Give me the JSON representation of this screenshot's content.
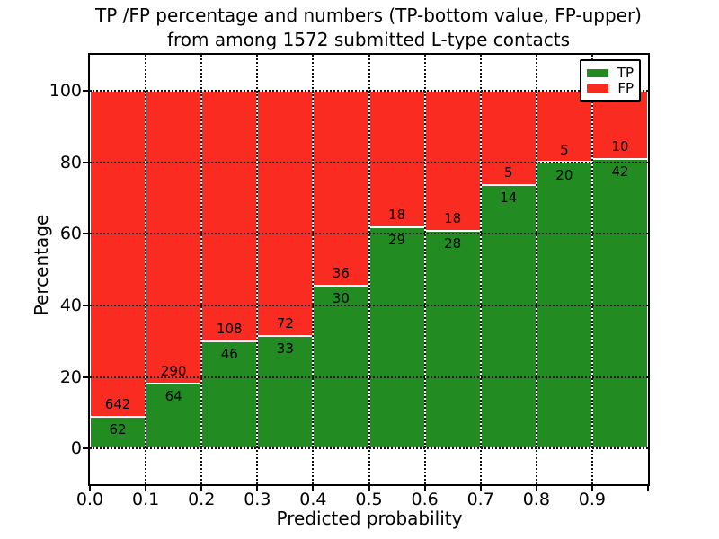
{
  "title": {
    "line1": "TP /FP percentage and numbers (TP-bottom value, FP-upper)",
    "line2": "from among 1572 submitted L-type contacts"
  },
  "chart_data": {
    "type": "bar",
    "stacked": true,
    "normalized_to_percent": true,
    "title": "TP /FP percentage and numbers (TP-bottom value, FP-upper)\nfrom among 1572 submitted L-type contacts",
    "xlabel": "Predicted probability",
    "ylabel": "Percentage",
    "total_contacts": 1572,
    "bin_edges": [
      0.0,
      0.1,
      0.2,
      0.3,
      0.4,
      0.5,
      0.6,
      0.7,
      0.8,
      0.9,
      1.0
    ],
    "xtick_labels": [
      "0.0",
      "0.1",
      "0.2",
      "0.3",
      "0.4",
      "0.5",
      "0.6",
      "0.7",
      "0.8",
      "0.9"
    ],
    "ytick_labels": [
      "0",
      "20",
      "40",
      "60",
      "80",
      "100"
    ],
    "ytick_values": [
      0,
      20,
      40,
      60,
      80,
      100
    ],
    "ylim": [
      -10,
      110
    ],
    "xlim": [
      0.0,
      1.0
    ],
    "grid": true,
    "legend_position": "upper right",
    "legend": [
      {
        "label": "TP",
        "color": "#228b22"
      },
      {
        "label": "FP",
        "color": "#fa2b20"
      }
    ],
    "series": [
      {
        "name": "TP",
        "counts": [
          62,
          64,
          46,
          33,
          30,
          29,
          28,
          14,
          20,
          42
        ]
      },
      {
        "name": "FP",
        "counts": [
          642,
          290,
          108,
          72,
          36,
          18,
          18,
          5,
          5,
          10
        ]
      }
    ],
    "tp_percent": [
      8.81,
      18.08,
      29.87,
      31.43,
      45.45,
      61.7,
      60.87,
      73.68,
      80.0,
      80.77
    ],
    "fp_percent": [
      91.19,
      81.92,
      70.13,
      68.57,
      54.55,
      38.3,
      39.13,
      26.32,
      20.0,
      19.23
    ]
  },
  "colors": {
    "tp": "#228b22",
    "fp": "#fa2b20",
    "grid": "#111111",
    "spine": "#000000",
    "background": "#ffffff"
  }
}
